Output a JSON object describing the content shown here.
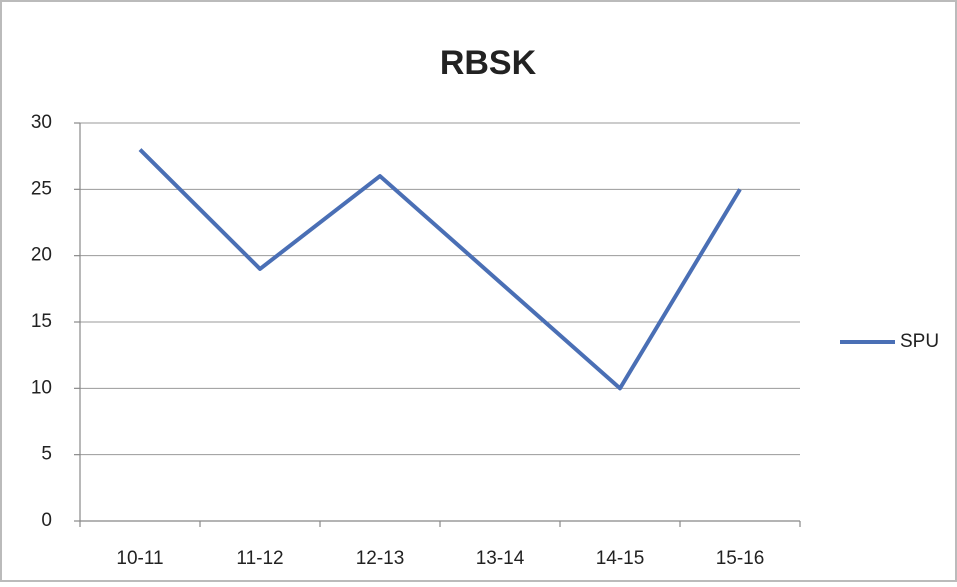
{
  "chart_data": {
    "type": "line",
    "title": "RBSK",
    "categories": [
      "10-11",
      "11-12",
      "12-13",
      "13-14",
      "14-15",
      "15-16"
    ],
    "series": [
      {
        "name": "SPU",
        "color": "#4a6fb5",
        "values": [
          28,
          19,
          26,
          18,
          10,
          25
        ]
      }
    ],
    "ylim": [
      0,
      30
    ],
    "yticks": [
      0,
      5,
      10,
      15,
      20,
      25,
      30
    ],
    "grid": true,
    "legend": "right"
  }
}
